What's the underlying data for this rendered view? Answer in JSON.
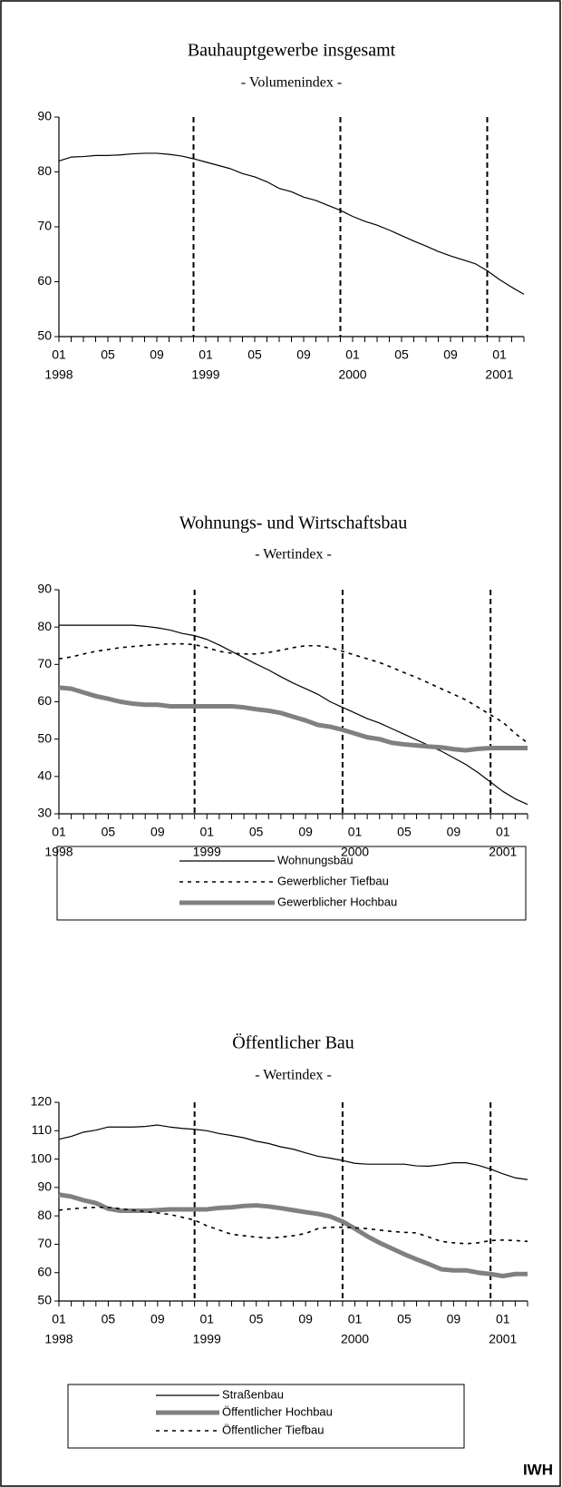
{
  "chart_data": [
    {
      "type": "line",
      "title": "Bauhauptgewerbe insgesamt",
      "subtitle": "- Volumenindex -",
      "categories": [
        "01",
        null,
        null,
        null,
        "05",
        null,
        null,
        null,
        "09",
        null,
        null,
        null,
        "01",
        null,
        null,
        null,
        "05",
        null,
        null,
        null,
        "09",
        null,
        null,
        null,
        "01",
        null,
        null,
        null,
        "05",
        null,
        null,
        null,
        "09",
        null,
        null,
        null,
        "01",
        null,
        null
      ],
      "year_labels": [
        "1998",
        null,
        null,
        null,
        null,
        null,
        null,
        null,
        null,
        null,
        null,
        null,
        "1999",
        null,
        null,
        null,
        null,
        null,
        null,
        null,
        null,
        null,
        null,
        null,
        "2000",
        null,
        null,
        null,
        null,
        null,
        null,
        null,
        null,
        null,
        null,
        null,
        "2001",
        null,
        null
      ],
      "values": [
        82.0,
        82.7,
        82.8,
        83.0,
        83.0,
        83.1,
        83.3,
        83.4,
        83.4,
        83.2,
        82.9,
        82.4,
        81.8,
        81.2,
        80.6,
        79.7,
        79.1,
        78.2,
        77.0,
        76.4,
        75.4,
        74.8,
        73.9,
        73.0,
        71.9,
        71.0,
        70.3,
        69.4,
        68.4,
        67.4,
        66.5,
        65.5,
        64.7,
        64.0,
        63.3,
        62.0,
        60.4,
        59.0,
        57.7
      ],
      "color": "#000000",
      "ylim": [
        50,
        90
      ],
      "yticks": [
        50,
        60,
        70,
        80,
        90
      ]
    },
    {
      "type": "line",
      "title": "Wohnungs- und Wirtschaftsbau",
      "subtitle": "- Wertindex -",
      "categories": [
        "01",
        null,
        null,
        null,
        "05",
        null,
        null,
        null,
        "09",
        null,
        null,
        null,
        "01",
        null,
        null,
        null,
        "05",
        null,
        null,
        null,
        "09",
        null,
        null,
        null,
        "01",
        null,
        null,
        null,
        "05",
        null,
        null,
        null,
        "09",
        null,
        null,
        null,
        "01",
        null,
        null
      ],
      "year_labels": [
        "1998",
        null,
        null,
        null,
        null,
        null,
        null,
        null,
        null,
        null,
        null,
        null,
        "1999",
        null,
        null,
        null,
        null,
        null,
        null,
        null,
        null,
        null,
        null,
        null,
        "2000",
        null,
        null,
        null,
        null,
        null,
        null,
        null,
        null,
        null,
        null,
        null,
        "2001",
        null,
        null
      ],
      "series": [
        {
          "name": "Wohnungsbau",
          "color": "#000000",
          "style": "solid",
          "width": 1.2,
          "values": [
            80.5,
            80.5,
            80.5,
            80.5,
            80.5,
            80.5,
            80.5,
            80.2,
            79.8,
            79.2,
            78.3,
            77.7,
            76.7,
            75.2,
            73.5,
            71.8,
            70.1,
            68.5,
            66.7,
            65.0,
            63.5,
            62.0,
            60.0,
            58.5,
            57.0,
            55.5,
            54.3,
            52.8,
            51.3,
            49.8,
            48.3,
            46.8,
            45.0,
            43.2,
            41.0,
            38.5,
            36.0,
            34.0,
            32.5
          ]
        },
        {
          "name": "Gewerblicher Tiefbau",
          "color": "#000000",
          "style": "dashed",
          "width": 1.6,
          "values": [
            71.5,
            72.0,
            72.8,
            73.5,
            74.0,
            74.5,
            74.8,
            75.1,
            75.3,
            75.5,
            75.5,
            75.3,
            74.5,
            73.5,
            73.0,
            72.8,
            72.8,
            73.2,
            73.8,
            74.5,
            75.0,
            75.0,
            74.5,
            73.5,
            72.5,
            71.5,
            70.5,
            69.2,
            67.8,
            66.5,
            65.0,
            63.5,
            62.0,
            60.5,
            58.5,
            56.5,
            54.5,
            51.5,
            49.0
          ]
        },
        {
          "name": "Gewerblicher Hochbau",
          "color": "#808080",
          "style": "solid",
          "width": 5,
          "values": [
            63.8,
            63.5,
            62.5,
            61.5,
            60.8,
            60.0,
            59.5,
            59.2,
            59.2,
            58.8,
            58.8,
            58.8,
            58.8,
            58.8,
            58.8,
            58.5,
            58.0,
            57.6,
            57.0,
            56.0,
            55.0,
            53.8,
            53.3,
            52.5,
            51.5,
            50.5,
            50.0,
            49.0,
            48.6,
            48.3,
            48.0,
            47.8,
            47.3,
            47.0,
            47.4,
            47.6,
            47.6,
            47.6,
            47.6
          ]
        }
      ],
      "ylim": [
        30,
        90
      ],
      "yticks": [
        30,
        40,
        50,
        60,
        70,
        80,
        90
      ]
    },
    {
      "type": "line",
      "title": "Öffentlicher Bau",
      "subtitle": "- Wertindex -",
      "categories": [
        "01",
        null,
        null,
        null,
        "05",
        null,
        null,
        null,
        "09",
        null,
        null,
        null,
        "01",
        null,
        null,
        null,
        "05",
        null,
        null,
        null,
        "09",
        null,
        null,
        null,
        "01",
        null,
        null,
        null,
        "05",
        null,
        null,
        null,
        "09",
        null,
        null,
        null,
        "01",
        null,
        null
      ],
      "year_labels": [
        "1998",
        null,
        null,
        null,
        null,
        null,
        null,
        null,
        null,
        null,
        null,
        null,
        "1999",
        null,
        null,
        null,
        null,
        null,
        null,
        null,
        null,
        null,
        null,
        null,
        "2000",
        null,
        null,
        null,
        null,
        null,
        null,
        null,
        null,
        null,
        null,
        null,
        "2001",
        null,
        null
      ],
      "series": [
        {
          "name": "Straßenbau",
          "color": "#000000",
          "style": "solid",
          "width": 1.2,
          "values": [
            107.0,
            108.0,
            109.5,
            110.2,
            111.3,
            111.3,
            111.3,
            111.5,
            112.0,
            111.3,
            110.8,
            110.5,
            110.0,
            109.0,
            108.3,
            107.5,
            106.3,
            105.5,
            104.3,
            103.5,
            102.2,
            101.0,
            100.3,
            99.5,
            98.5,
            98.2,
            98.2,
            98.2,
            98.2,
            97.6,
            97.5,
            98.0,
            98.7,
            98.7,
            97.8,
            96.5,
            94.8,
            93.4,
            92.8
          ]
        },
        {
          "name": "Öffentlicher Hochbau",
          "color": "#808080",
          "style": "solid",
          "width": 5,
          "values": [
            87.5,
            86.8,
            85.5,
            84.5,
            82.5,
            81.8,
            81.8,
            81.8,
            82.0,
            82.3,
            82.3,
            82.3,
            82.3,
            82.8,
            83.0,
            83.5,
            83.7,
            83.3,
            82.7,
            82.0,
            81.3,
            80.7,
            79.8,
            78.0,
            75.5,
            72.8,
            70.5,
            68.5,
            66.5,
            64.7,
            63.0,
            61.2,
            60.8,
            60.8,
            60.0,
            59.5,
            58.8,
            59.5,
            59.5
          ]
        },
        {
          "name": "Öffentlicher Tiefbau",
          "color": "#000000",
          "style": "dashed",
          "width": 1.6,
          "values": [
            82.0,
            82.5,
            82.8,
            83.0,
            83.0,
            82.5,
            82.0,
            81.5,
            81.0,
            80.5,
            79.5,
            78.5,
            76.5,
            75.0,
            73.5,
            73.0,
            72.5,
            72.2,
            72.5,
            73.0,
            73.8,
            75.5,
            76.0,
            76.0,
            75.8,
            75.5,
            75.0,
            74.5,
            74.2,
            74.0,
            72.5,
            71.0,
            70.5,
            70.2,
            70.5,
            71.3,
            71.5,
            71.3,
            71.0
          ]
        }
      ],
      "ylim": [
        50,
        120
      ],
      "yticks": [
        50,
        60,
        70,
        80,
        90,
        100,
        110,
        120
      ]
    }
  ],
  "footer": "IWH"
}
